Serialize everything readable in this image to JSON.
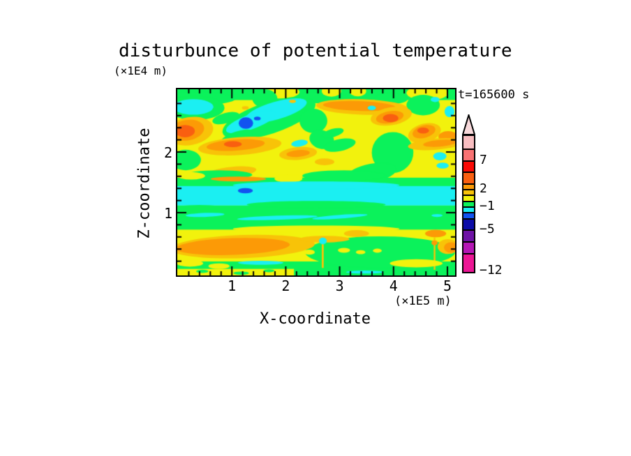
{
  "title": "disturbunce of potential temperature",
  "time_label": "t=165600 s",
  "axes": {
    "x_label": "X-coordinate",
    "x_unit": "(×1E5 m)",
    "y_label": "Z-coordinate",
    "y_unit": "(×1E4 m)",
    "x_major_ticks": [
      "1",
      "2",
      "3",
      "4",
      "5"
    ],
    "y_major_ticks": [
      "2",
      "1"
    ]
  },
  "colorbar": {
    "labeled_levels": [
      "7",
      "2",
      "-1",
      "-5",
      "-12"
    ]
  },
  "chart_data": {
    "type": "heatmap",
    "title": "disturbunce of potential temperature",
    "xlabel": "X-coordinate",
    "ylabel": "Z-coordinate",
    "x_unit_note": "(×1E5 m)",
    "y_unit_note": "(×1E4 m)",
    "xlim": [
      0,
      5.15
    ],
    "ylim": [
      0,
      3.05
    ],
    "x_major_ticks": [
      1,
      2,
      3,
      4,
      5
    ],
    "y_major_ticks": [
      1,
      2
    ],
    "minor_tick_step": 0.2,
    "time_annotation": "t=165600 s",
    "contour_levels_desc": [
      11.4,
      9,
      7,
      5,
      3,
      2,
      1,
      0,
      -1,
      -2,
      -3,
      -5,
      -7,
      -9,
      -12
    ],
    "colorbar_labeled_levels": [
      7,
      2,
      -1,
      -5,
      -12
    ],
    "palette_top_to_bottom": [
      "#F9BEC1",
      "#F87273",
      "#FA0A05",
      "#F95F10",
      "#FC9A06",
      "#F8C308",
      "#F2F20D",
      "#0BF25B",
      "#1BEFF2",
      "#1253F0",
      "#0D0DA8",
      "#6E12A5",
      "#B517B5",
      "#EC1695"
    ],
    "arrow_cap_color": "#F8D9DB",
    "field_colors": {
      "yellow": "#F2F20D",
      "green": "#0BF25B",
      "cyan": "#1BEFF2",
      "amber": "#F8C308",
      "orange": "#FC9A06",
      "deep": "#F95F10",
      "blue": "#1253F0",
      "navy": "#0D0DA8"
    },
    "field_description": "Turbulent disturbance field: values mostly between -3 and 3 (yellow/green) with a cyan band (-2..-1) near z=1.1e4 m, orange patches (2..3) in lobes, small blue minima near x=1.2e5 m",
    "field_shapes": [
      [
        "rect",
        "yellow",
        0,
        0,
        1,
        1,
        0
      ],
      [
        "rect",
        "green",
        0,
        0,
        1,
        0.058,
        0
      ],
      [
        "ellipse",
        "green",
        0.07,
        0.05,
        0.14,
        0.035,
        0
      ],
      [
        "ellipse",
        "green",
        0.5,
        0.045,
        0.09,
        0.03,
        0
      ],
      [
        "ellipse",
        "green",
        0.77,
        0.05,
        0.06,
        0.03,
        0
      ],
      [
        "ellipse",
        "yellow",
        0.375,
        0.015,
        0.065,
        0.035,
        0
      ],
      [
        "ellipse",
        "yellow",
        0.555,
        0.01,
        0.035,
        0.03,
        0
      ],
      [
        "ellipse",
        "yellow",
        0.65,
        0.01,
        0.03,
        0.028,
        0
      ],
      [
        "ellipse",
        "yellow",
        0.9,
        0.02,
        0.075,
        0.04,
        0
      ],
      [
        "ellipse",
        "green",
        0.065,
        0.1,
        0.105,
        0.065,
        0
      ],
      [
        "ellipse",
        "cyan",
        0.058,
        0.095,
        0.072,
        0.042,
        0
      ],
      [
        "ellipse",
        "green",
        0.315,
        0.05,
        0.045,
        0.05,
        0
      ],
      [
        "ellipse",
        "green",
        0.885,
        0.085,
        0.06,
        0.055,
        0
      ],
      [
        "ellipse",
        "green",
        0.33,
        0.155,
        0.175,
        0.085,
        -18
      ],
      [
        "ellipse",
        "cyan",
        0.355,
        0.115,
        0.115,
        0.048,
        -16
      ],
      [
        "ellipse",
        "cyan",
        0.265,
        0.175,
        0.095,
        0.04,
        -20
      ],
      [
        "ellipse",
        "blue",
        0.247,
        0.182,
        0.026,
        0.031,
        0
      ],
      [
        "ellipse",
        "blue",
        0.288,
        0.157,
        0.012,
        0.01,
        0
      ],
      [
        "ellipse",
        "green",
        0.175,
        0.155,
        0.05,
        0.028,
        -15
      ],
      [
        "ellipse",
        "green",
        0.215,
        0.255,
        0.06,
        0.028,
        -18
      ],
      [
        "ellipse",
        "green",
        0.49,
        0.17,
        0.05,
        0.065,
        0
      ],
      [
        "ellipse",
        "green",
        0.52,
        0.27,
        0.045,
        0.05,
        15
      ],
      [
        "ellipse",
        "amber",
        0.665,
        0.095,
        0.165,
        0.042,
        2
      ],
      [
        "ellipse",
        "orange",
        0.655,
        0.09,
        0.13,
        0.026,
        2
      ],
      [
        "ellipse",
        "amber",
        0.77,
        0.145,
        0.075,
        0.048,
        -10
      ],
      [
        "ellipse",
        "orange",
        0.765,
        0.15,
        0.05,
        0.032,
        -10
      ],
      [
        "ellipse",
        "deep",
        0.768,
        0.155,
        0.028,
        0.022,
        0
      ],
      [
        "ellipse",
        "cyan",
        0.928,
        0.055,
        0.016,
        0.014,
        0
      ],
      [
        "ellipse",
        "cyan",
        0.98,
        0.12,
        0.018,
        0.03,
        0
      ],
      [
        "ellipse",
        "cyan",
        0.7,
        0.1,
        0.015,
        0.012,
        0
      ],
      [
        "ellipse",
        "amber",
        0.89,
        0.235,
        0.06,
        0.05,
        -15
      ],
      [
        "ellipse",
        "orange",
        0.888,
        0.228,
        0.042,
        0.033,
        -15
      ],
      [
        "ellipse",
        "deep",
        0.885,
        0.222,
        0.021,
        0.016,
        0
      ],
      [
        "ellipse",
        "orange",
        0.975,
        0.255,
        0.035,
        0.03,
        0
      ],
      [
        "ellipse",
        "amber",
        0.045,
        0.225,
        0.085,
        0.075,
        -10
      ],
      [
        "ellipse",
        "orange",
        0.035,
        0.22,
        0.062,
        0.055,
        -10
      ],
      [
        "ellipse",
        "deep",
        0.028,
        0.225,
        0.035,
        0.033,
        0
      ],
      [
        "ellipse",
        "green",
        0.03,
        0.38,
        0.055,
        0.055,
        0
      ],
      [
        "ellipse",
        "amber",
        0.225,
        0.305,
        0.15,
        0.048,
        -4
      ],
      [
        "ellipse",
        "orange",
        0.21,
        0.3,
        0.105,
        0.03,
        -4
      ],
      [
        "ellipse",
        "deep",
        0.2,
        0.295,
        0.032,
        0.016,
        0
      ],
      [
        "ellipse",
        "amber",
        0.195,
        0.445,
        0.09,
        0.028,
        -6
      ],
      [
        "ellipse",
        "amber",
        0.245,
        0.1,
        0.012,
        0.009,
        0
      ],
      [
        "ellipse",
        "amber",
        0.415,
        0.065,
        0.012,
        0.009,
        0
      ],
      [
        "ellipse",
        "amber",
        0.435,
        0.345,
        0.068,
        0.034,
        -5
      ],
      [
        "ellipse",
        "orange",
        0.435,
        0.345,
        0.042,
        0.018,
        -5
      ],
      [
        "ellipse",
        "cyan",
        0.44,
        0.29,
        0.03,
        0.018,
        -8
      ],
      [
        "ellipse",
        "green",
        0.585,
        0.3,
        0.058,
        0.032,
        -12
      ],
      [
        "ellipse",
        "green",
        0.56,
        0.235,
        0.04,
        0.022,
        -15
      ],
      [
        "ellipse",
        "amber",
        0.53,
        0.39,
        0.035,
        0.018,
        0
      ],
      [
        "ellipse",
        "green",
        0.775,
        0.34,
        0.075,
        0.11,
        -12
      ],
      [
        "ellipse",
        "green",
        0.7,
        0.45,
        0.09,
        0.05,
        -10
      ],
      [
        "ellipse",
        "cyan",
        0.945,
        0.36,
        0.024,
        0.022,
        0
      ],
      [
        "ellipse",
        "cyan",
        0.955,
        0.41,
        0.022,
        0.016,
        0
      ],
      [
        "ellipse",
        "amber",
        0.93,
        0.295,
        0.1,
        0.03,
        -5
      ],
      [
        "ellipse",
        "orange",
        0.945,
        0.29,
        0.06,
        0.018,
        -5
      ],
      [
        "rect",
        "green",
        0,
        0.475,
        1,
        0.055,
        0
      ],
      [
        "ellipse",
        "green",
        0.15,
        0.46,
        0.12,
        0.025,
        0
      ],
      [
        "ellipse",
        "green",
        0.6,
        0.465,
        0.15,
        0.03,
        0
      ],
      [
        "ellipse",
        "yellow",
        0.4,
        0.48,
        0.05,
        0.022,
        0
      ],
      [
        "ellipse",
        "yellow",
        0.05,
        0.465,
        0.05,
        0.02,
        0
      ],
      [
        "ellipse",
        "orange",
        0.22,
        0.482,
        0.1,
        0.013,
        0
      ],
      [
        "rect",
        "cyan",
        0,
        0.52,
        1,
        0.105,
        0
      ],
      [
        "ellipse",
        "cyan",
        0.5,
        0.515,
        0.3,
        0.02,
        0
      ],
      [
        "ellipse",
        "green",
        0.08,
        0.64,
        0.1,
        0.018,
        0
      ],
      [
        "ellipse",
        "blue",
        0.245,
        0.545,
        0.027,
        0.014,
        0
      ],
      [
        "rect",
        "green",
        0,
        0.625,
        1,
        0.13,
        0
      ],
      [
        "ellipse",
        "green",
        0.5,
        0.62,
        0.25,
        0.02,
        0
      ],
      [
        "ellipse",
        "cyan",
        0.1,
        0.675,
        0.07,
        0.011,
        -2
      ],
      [
        "ellipse",
        "cyan",
        0.36,
        0.69,
        0.145,
        0.011,
        -2
      ],
      [
        "ellipse",
        "cyan",
        0.585,
        0.685,
        0.1,
        0.01,
        -4
      ],
      [
        "ellipse",
        "cyan",
        0.935,
        0.678,
        0.02,
        0.008,
        0
      ],
      [
        "rect",
        "yellow",
        0,
        0.755,
        1,
        0.115,
        0
      ],
      [
        "ellipse",
        "yellow",
        0.5,
        0.75,
        0.3,
        0.018,
        0
      ],
      [
        "rect",
        "green",
        0,
        0.925,
        1,
        0.075,
        0
      ],
      [
        "ellipse",
        "green",
        0.73,
        0.875,
        0.27,
        0.085,
        0
      ],
      [
        "ellipse",
        "green",
        0.42,
        0.96,
        0.15,
        0.03,
        0
      ],
      [
        "ellipse",
        "amber",
        0.235,
        0.845,
        0.26,
        0.062,
        -2
      ],
      [
        "ellipse",
        "orange",
        0.2,
        0.845,
        0.205,
        0.045,
        -2
      ],
      [
        "ellipse",
        "amber",
        0.53,
        0.805,
        0.09,
        0.018,
        0
      ],
      [
        "ellipse",
        "amber",
        0.645,
        0.775,
        0.045,
        0.018,
        0
      ],
      [
        "ellipse",
        "orange",
        0.93,
        0.775,
        0.038,
        0.02,
        0
      ],
      [
        "ellipse",
        "amber",
        0.975,
        0.845,
        0.038,
        0.04,
        0
      ],
      [
        "ellipse",
        "orange",
        0.985,
        0.85,
        0.025,
        0.028,
        0
      ],
      [
        "rect",
        "amber",
        0.52,
        0.79,
        0.007,
        0.17,
        0
      ],
      [
        "ellipse",
        "cyan",
        0.524,
        0.815,
        0.014,
        0.018,
        0
      ],
      [
        "rect",
        "amber",
        0.923,
        0.795,
        0.006,
        0.175,
        0
      ],
      [
        "ellipse",
        "orange",
        0.926,
        0.825,
        0.011,
        0.013,
        0
      ],
      [
        "ellipse",
        "yellow",
        0.6,
        0.865,
        0.022,
        0.013,
        0
      ],
      [
        "ellipse",
        "yellow",
        0.66,
        0.875,
        0.017,
        0.011,
        0
      ],
      [
        "ellipse",
        "yellow",
        0.72,
        0.867,
        0.016,
        0.011,
        0
      ],
      [
        "ellipse",
        "yellow",
        0.475,
        0.875,
        0.02,
        0.014,
        0
      ],
      [
        "ellipse",
        "yellow",
        0.86,
        0.935,
        0.095,
        0.022,
        0
      ],
      [
        "ellipse",
        "yellow",
        0.045,
        0.935,
        0.048,
        0.018,
        0
      ],
      [
        "ellipse",
        "yellow",
        0.15,
        0.95,
        0.038,
        0.015,
        0
      ],
      [
        "rect",
        "yellow",
        0,
        0.965,
        0.42,
        0.035,
        0
      ],
      [
        "ellipse",
        "green",
        0.09,
        0.978,
        0.022,
        0.009,
        0
      ],
      [
        "ellipse",
        "green",
        0.23,
        0.988,
        0.028,
        0.009,
        0
      ],
      [
        "ellipse",
        "green",
        0.33,
        0.975,
        0.02,
        0.008,
        0
      ],
      [
        "ellipse",
        "cyan",
        0.3,
        0.932,
        0.082,
        0.011,
        0
      ],
      [
        "ellipse",
        "cyan",
        0.675,
        0.982,
        0.068,
        0.008,
        0
      ]
    ]
  }
}
